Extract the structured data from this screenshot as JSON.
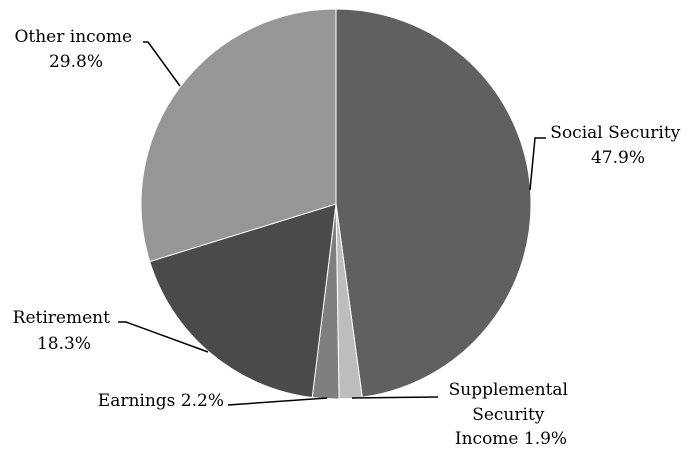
{
  "chart_data": {
    "type": "pie",
    "start_angle_deg": 0,
    "direction": "clockwise",
    "slices": [
      {
        "label": "Social Security",
        "value": 47.9,
        "value_text": "47.9%",
        "color": "#606060"
      },
      {
        "label": "Supplemental Security Income",
        "value": 1.9,
        "value_text": "1.9%",
        "color": "#bdbdbd"
      },
      {
        "label": "Earnings",
        "value": 2.2,
        "value_text": "2.2%",
        "color": "#7f7f7f"
      },
      {
        "label": "Retirement",
        "value": 18.3,
        "value_text": "18.3%",
        "color": "#4a4a4a"
      },
      {
        "label": "Other income",
        "value": 29.8,
        "value_text": "29.8%",
        "color": "#969696"
      }
    ]
  },
  "labels": {
    "social_security": {
      "line1": "Social Security",
      "line2": "47.9%"
    },
    "ssi": {
      "line1": "Supplemental",
      "line2": "Security",
      "line3": "Income 1.9%"
    },
    "earnings": {
      "line1": "Earnings 2.2%"
    },
    "retirement": {
      "line1": "Retirement",
      "line2": "18.3%"
    },
    "other_income": {
      "line1": "Other income",
      "line2": "29.8%"
    }
  }
}
